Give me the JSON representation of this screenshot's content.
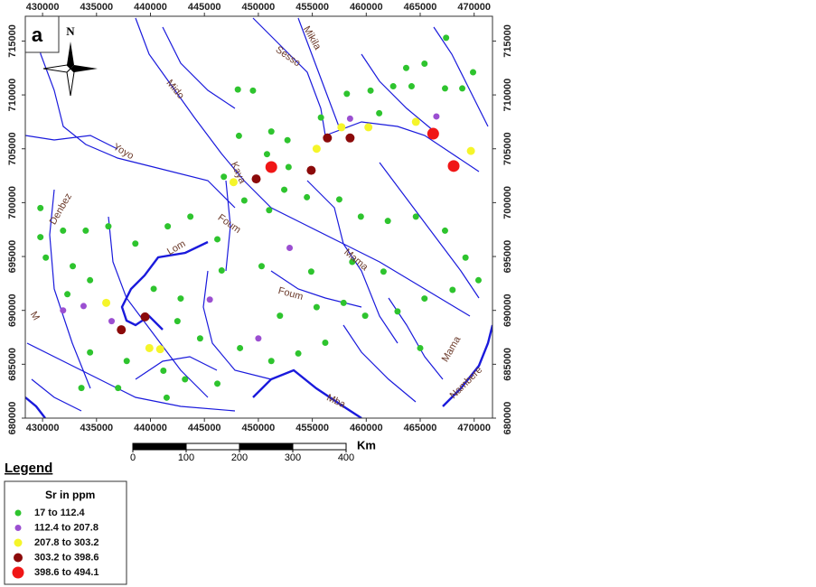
{
  "map": {
    "panel_label": "a",
    "north": "N",
    "xlim": [
      428400,
      471700
    ],
    "ylim": [
      680000,
      717300
    ],
    "xticks": [
      430000,
      435000,
      440000,
      445000,
      450000,
      455000,
      460000,
      465000,
      470000
    ],
    "yticks": [
      680000,
      685000,
      690000,
      695000,
      700000,
      705000,
      710000,
      715000
    ],
    "river_labels": [
      "Sesso",
      "Mikila",
      "Mido",
      "Yoyo",
      "Denbez",
      "Lom",
      "Kaya",
      "Foum",
      "Mama",
      "Foum",
      "M",
      "Mba",
      "Mama",
      "Nambere"
    ],
    "scale_bar": {
      "ticks": [
        0,
        100,
        200,
        300,
        400
      ],
      "unit": "Km"
    },
    "legend": {
      "title": "Legend",
      "subtitle": "Sr in ppm",
      "classes": [
        {
          "label": "17  to  112.4",
          "color": "#2ec42e",
          "size": 3.5,
          "points": [
            [
              467400,
              715300
            ],
            [
              463700,
              712500
            ],
            [
              465400,
              712900
            ],
            [
              469900,
              712100
            ],
            [
              462500,
              710800
            ],
            [
              464200,
              710800
            ],
            [
              467300,
              710600
            ],
            [
              468900,
              710600
            ],
            [
              460400,
              710400
            ],
            [
              458200,
              710100
            ],
            [
              449500,
              710400
            ],
            [
              448100,
              710500
            ],
            [
              451200,
              706600
            ],
            [
              452700,
              705800
            ],
            [
              450800,
              704500
            ],
            [
              446800,
              702400
            ],
            [
              448700,
              700200
            ],
            [
              452400,
              701200
            ],
            [
              451000,
              699300
            ],
            [
              454500,
              700500
            ],
            [
              457500,
              700300
            ],
            [
              459500,
              698700
            ],
            [
              462000,
              698300
            ],
            [
              464600,
              698700
            ],
            [
              467300,
              697400
            ],
            [
              469200,
              694900
            ],
            [
              470400,
              692800
            ],
            [
              468000,
              691900
            ],
            [
              465400,
              691100
            ],
            [
              462900,
              689900
            ],
            [
              459900,
              689500
            ],
            [
              457900,
              690700
            ],
            [
              455400,
              690300
            ],
            [
              452000,
              689500
            ],
            [
              453700,
              686000
            ],
            [
              456200,
              687000
            ],
            [
              465000,
              686500
            ],
            [
              461600,
              693600
            ],
            [
              458700,
              694500
            ],
            [
              454900,
              693600
            ],
            [
              450300,
              694100
            ],
            [
              446600,
              693700
            ],
            [
              446200,
              696600
            ],
            [
              443700,
              698700
            ],
            [
              441600,
              697800
            ],
            [
              438600,
              696200
            ],
            [
              436100,
              697800
            ],
            [
              434000,
              697400
            ],
            [
              431900,
              697400
            ],
            [
              429800,
              699500
            ],
            [
              429800,
              696800
            ],
            [
              430300,
              694900
            ],
            [
              432800,
              694100
            ],
            [
              434400,
              692800
            ],
            [
              432300,
              691500
            ],
            [
              440300,
              692000
            ],
            [
              442800,
              691100
            ],
            [
              442500,
              689000
            ],
            [
              444600,
              687400
            ],
            [
              448300,
              686500
            ],
            [
              434400,
              686100
            ],
            [
              437800,
              685300
            ],
            [
              441200,
              684400
            ],
            [
              443200,
              683600
            ],
            [
              446200,
              683200
            ],
            [
              433600,
              682800
            ],
            [
              437000,
              682800
            ],
            [
              441500,
              681900
            ],
            [
              451200,
              685300
            ],
            [
              448200,
              706200
            ],
            [
              452800,
              703300
            ],
            [
              455800,
              707900
            ],
            [
              461200,
              708300
            ]
          ]
        },
        {
          "label": "112.4  to  207.8",
          "color": "#9b4fd1",
          "size": 3.5,
          "points": [
            [
              458500,
              707800
            ],
            [
              466500,
              708000
            ],
            [
              452900,
              695800
            ],
            [
              445500,
              691000
            ],
            [
              450000,
              687400
            ],
            [
              431900,
              690000
            ],
            [
              433800,
              690400
            ],
            [
              436400,
              689000
            ]
          ]
        },
        {
          "label": "207.8  to  303.2",
          "color": "#f5f52a",
          "size": 4.5,
          "points": [
            [
              457700,
              707000
            ],
            [
              460200,
              707000
            ],
            [
              464600,
              707500
            ],
            [
              469700,
              704800
            ],
            [
              447700,
              701900
            ],
            [
              435900,
              690700
            ],
            [
              439900,
              686500
            ],
            [
              440900,
              686400
            ],
            [
              455400,
              705000
            ]
          ]
        },
        {
          "label": "303.2  to  398.6",
          "color": "#8b0a0a",
          "size": 5,
          "points": [
            [
              456400,
              706000
            ],
            [
              458500,
              706000
            ],
            [
              454900,
              703000
            ],
            [
              449800,
              702200
            ],
            [
              439500,
              689400
            ],
            [
              437300,
              688200
            ]
          ]
        },
        {
          "label": "398.6  to  494.1",
          "color": "#f01616",
          "size": 6.5,
          "points": [
            [
              451200,
              703300
            ],
            [
              466200,
              706400
            ],
            [
              468100,
              703400
            ]
          ]
        }
      ]
    }
  }
}
